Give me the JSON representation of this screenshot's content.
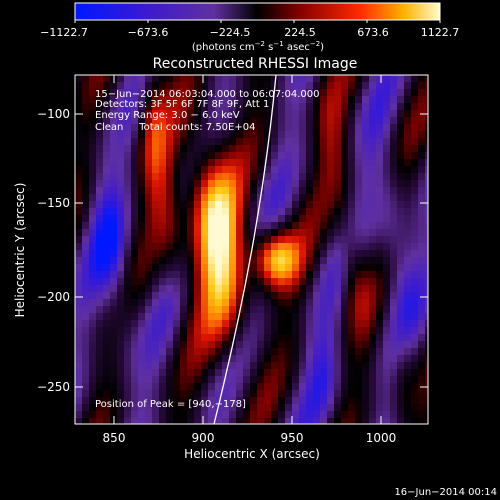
{
  "colorbar": {
    "tick_labels": [
      "−1122.7",
      "−673.6",
      "−224.5",
      "224.5",
      "673.6",
      "1122.7"
    ],
    "unit_main": "(photons cm",
    "unit_sup1": "−2",
    "unit_mid1": " s",
    "unit_sup2": "−1",
    "unit_mid2": " asec",
    "unit_sup3": "−2",
    "unit_end": ")"
  },
  "title": "Reconstructed RHESSI Image",
  "info": {
    "line1": "15−Jun−2014 06:03:04.000 to 06:07:04.000",
    "line2": "Detectors: 3F 5F 6F 7F 8F 9F, Att 1",
    "line3": "Energy Range: 3.0 − 6.0 keV",
    "line4": "Clean     Total counts: 7.50E+04"
  },
  "peak_text": "Position of Peak = [940,−178]",
  "x_axis": {
    "label": "Heliocentric X (arcsec)",
    "ticks": [
      "850",
      "900",
      "950",
      "1000"
    ]
  },
  "y_axis": {
    "label": "Heliocentric Y (arcsec)",
    "ticks": [
      "−100",
      "−150",
      "−200",
      "−250"
    ]
  },
  "footer_date": "16−Jun−2014 00:14",
  "colors": {
    "background": "#000000",
    "text": "#ffffff",
    "colormap": [
      "#0000ff",
      "#3c00c8",
      "#6a2aa8",
      "#000000",
      "#7a0000",
      "#e01000",
      "#ff7a00",
      "#ffd000",
      "#ffffff"
    ]
  }
}
